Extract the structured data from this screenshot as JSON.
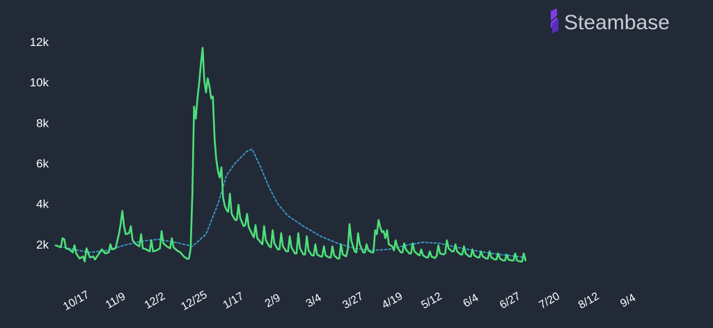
{
  "brand": {
    "name": "Steambase",
    "logo_icon": "steambase-logo-icon",
    "logo_color": "#7b3fe4",
    "text_color": "#c9ccd3"
  },
  "colors": {
    "background": "#222a38",
    "players_line": "#4ee07a",
    "average_line": "#3a9fd0",
    "tick_text": "#ffffff"
  },
  "chart_data": {
    "type": "line",
    "title": "",
    "xlabel": "",
    "ylabel": "",
    "ylim": [
      0,
      12000
    ],
    "y_ticks": [
      {
        "value": 2000,
        "label": "2k"
      },
      {
        "value": 4000,
        "label": "4k"
      },
      {
        "value": 6000,
        "label": "6k"
      },
      {
        "value": 8000,
        "label": "8k"
      },
      {
        "value": 10000,
        "label": "10k"
      },
      {
        "value": 12000,
        "label": "12k"
      }
    ],
    "x_ticks": [
      {
        "day": 13,
        "label": "10/17"
      },
      {
        "day": 36,
        "label": "11/9"
      },
      {
        "day": 59,
        "label": "12/2"
      },
      {
        "day": 82,
        "label": "12/25"
      },
      {
        "day": 105,
        "label": "1/17"
      },
      {
        "day": 128,
        "label": "2/9"
      },
      {
        "day": 152,
        "label": "3/4"
      },
      {
        "day": 175,
        "label": "3/27"
      },
      {
        "day": 198,
        "label": "4/19"
      },
      {
        "day": 221,
        "label": "5/12"
      },
      {
        "day": 244,
        "label": "6/4"
      },
      {
        "day": 267,
        "label": "6/27"
      },
      {
        "day": 290,
        "label": "7/20"
      },
      {
        "day": 313,
        "label": "8/12"
      },
      {
        "day": 336,
        "label": "9/4"
      }
    ],
    "x_range": [
      0,
      375
    ],
    "grid": false,
    "legend": "none",
    "series": [
      {
        "values": [
          [
            0,
            1950
          ],
          [
            3,
            1850
          ],
          [
            4,
            2300
          ],
          [
            5,
            2250
          ],
          [
            6,
            1800
          ],
          [
            8,
            1750
          ],
          [
            10,
            1600
          ],
          [
            11,
            1950
          ],
          [
            12,
            1550
          ],
          [
            14,
            1300
          ],
          [
            16,
            1400
          ],
          [
            17,
            1150
          ],
          [
            18,
            1800
          ],
          [
            20,
            1350
          ],
          [
            22,
            1400
          ],
          [
            23,
            1250
          ],
          [
            25,
            1500
          ],
          [
            27,
            1750
          ],
          [
            29,
            1550
          ],
          [
            31,
            1600
          ],
          [
            32,
            2000
          ],
          [
            33,
            1750
          ],
          [
            35,
            1800
          ],
          [
            37,
            2500
          ],
          [
            38,
            3000
          ],
          [
            39,
            3650
          ],
          [
            40,
            2900
          ],
          [
            41,
            2500
          ],
          [
            43,
            2550
          ],
          [
            44,
            2900
          ],
          [
            45,
            2200
          ],
          [
            47,
            2000
          ],
          [
            49,
            1900
          ],
          [
            50,
            2500
          ],
          [
            51,
            1800
          ],
          [
            53,
            1750
          ],
          [
            55,
            1650
          ],
          [
            56,
            2200
          ],
          [
            57,
            1650
          ],
          [
            59,
            1700
          ],
          [
            61,
            1800
          ],
          [
            62,
            2650
          ],
          [
            63,
            2050
          ],
          [
            65,
            1900
          ],
          [
            67,
            1800
          ],
          [
            68,
            2300
          ],
          [
            69,
            1850
          ],
          [
            71,
            1700
          ],
          [
            73,
            1600
          ],
          [
            75,
            1400
          ],
          [
            77,
            1280
          ],
          [
            78,
            1300
          ],
          [
            79,
            1800
          ],
          [
            80,
            4500
          ],
          [
            81,
            8800
          ],
          [
            82,
            8200
          ],
          [
            83,
            9200
          ],
          [
            84,
            10000
          ],
          [
            85,
            10900
          ],
          [
            86,
            11700
          ],
          [
            87,
            10100
          ],
          [
            88,
            9500
          ],
          [
            89,
            10200
          ],
          [
            90,
            9800
          ],
          [
            91,
            9200
          ],
          [
            92,
            9300
          ],
          [
            93,
            7200
          ],
          [
            94,
            6200
          ],
          [
            95,
            5600
          ],
          [
            96,
            5300
          ],
          [
            97,
            5800
          ],
          [
            98,
            4300
          ],
          [
            99,
            3900
          ],
          [
            100,
            3700
          ],
          [
            101,
            3600
          ],
          [
            102,
            4500
          ],
          [
            103,
            3500
          ],
          [
            105,
            3200
          ],
          [
            106,
            3200
          ],
          [
            107,
            3950
          ],
          [
            108,
            3300
          ],
          [
            110,
            2900
          ],
          [
            111,
            2950
          ],
          [
            112,
            3500
          ],
          [
            113,
            2850
          ],
          [
            115,
            2500
          ],
          [
            116,
            2350
          ],
          [
            117,
            2950
          ],
          [
            118,
            2300
          ],
          [
            120,
            2100
          ],
          [
            121,
            2000
          ],
          [
            122,
            2900
          ],
          [
            123,
            2200
          ],
          [
            125,
            1900
          ],
          [
            126,
            1850
          ],
          [
            127,
            2700
          ],
          [
            128,
            2050
          ],
          [
            130,
            1750
          ],
          [
            131,
            1750
          ],
          [
            132,
            2550
          ],
          [
            133,
            1900
          ],
          [
            135,
            1650
          ],
          [
            136,
            1650
          ],
          [
            137,
            2400
          ],
          [
            138,
            1850
          ],
          [
            140,
            1550
          ],
          [
            141,
            1550
          ],
          [
            142,
            2550
          ],
          [
            143,
            1800
          ],
          [
            145,
            1500
          ],
          [
            146,
            1500
          ],
          [
            147,
            2400
          ],
          [
            148,
            1700
          ],
          [
            150,
            1450
          ],
          [
            151,
            1450
          ],
          [
            152,
            2000
          ],
          [
            153,
            1500
          ],
          [
            155,
            1400
          ],
          [
            156,
            1400
          ],
          [
            157,
            1900
          ],
          [
            158,
            1450
          ],
          [
            160,
            1350
          ],
          [
            161,
            1350
          ],
          [
            162,
            1900
          ],
          [
            163,
            1450
          ],
          [
            165,
            1300
          ],
          [
            166,
            1300
          ],
          [
            167,
            2000
          ],
          [
            168,
            1500
          ],
          [
            170,
            1400
          ],
          [
            171,
            1750
          ],
          [
            172,
            3000
          ],
          [
            173,
            2200
          ],
          [
            175,
            1650
          ],
          [
            176,
            1600
          ],
          [
            177,
            2550
          ],
          [
            178,
            2000
          ],
          [
            180,
            1600
          ],
          [
            181,
            1600
          ],
          [
            182,
            2000
          ],
          [
            183,
            1700
          ],
          [
            185,
            1600
          ],
          [
            186,
            1600
          ],
          [
            187,
            2700
          ],
          [
            188,
            2500
          ],
          [
            189,
            3200
          ],
          [
            190,
            2850
          ],
          [
            191,
            2600
          ],
          [
            192,
            2650
          ],
          [
            193,
            2300
          ],
          [
            194,
            2700
          ],
          [
            195,
            2000
          ],
          [
            197,
            1900
          ],
          [
            198,
            1700
          ],
          [
            199,
            2200
          ],
          [
            200,
            1850
          ],
          [
            202,
            1600
          ],
          [
            203,
            1600
          ],
          [
            204,
            2050
          ],
          [
            205,
            1750
          ],
          [
            207,
            1550
          ],
          [
            208,
            1550
          ],
          [
            209,
            2050
          ],
          [
            210,
            1650
          ],
          [
            212,
            1500
          ],
          [
            213,
            1450
          ],
          [
            214,
            1750
          ],
          [
            215,
            1450
          ],
          [
            217,
            1350
          ],
          [
            218,
            1350
          ],
          [
            219,
            1650
          ],
          [
            220,
            1400
          ],
          [
            222,
            1320
          ],
          [
            223,
            1420
          ],
          [
            224,
            1950
          ],
          [
            225,
            1550
          ],
          [
            227,
            1500
          ],
          [
            228,
            1550
          ],
          [
            229,
            2200
          ],
          [
            230,
            1800
          ],
          [
            232,
            1650
          ],
          [
            233,
            1650
          ],
          [
            234,
            2000
          ],
          [
            235,
            1650
          ],
          [
            237,
            1500
          ],
          [
            238,
            1500
          ],
          [
            239,
            1900
          ],
          [
            240,
            1550
          ],
          [
            242,
            1400
          ],
          [
            243,
            1400
          ],
          [
            244,
            1750
          ],
          [
            245,
            1450
          ],
          [
            247,
            1350
          ],
          [
            248,
            1350
          ],
          [
            249,
            1650
          ],
          [
            250,
            1400
          ],
          [
            252,
            1300
          ],
          [
            253,
            1300
          ],
          [
            254,
            1650
          ],
          [
            255,
            1350
          ],
          [
            257,
            1250
          ],
          [
            258,
            1250
          ],
          [
            259,
            1550
          ],
          [
            260,
            1300
          ],
          [
            262,
            1200
          ],
          [
            263,
            1200
          ],
          [
            264,
            1500
          ],
          [
            265,
            1250
          ],
          [
            267,
            1200
          ],
          [
            268,
            1200
          ],
          [
            269,
            1550
          ],
          [
            270,
            1200
          ],
          [
            272,
            1150
          ],
          [
            273,
            1150
          ],
          [
            274,
            1550
          ],
          [
            275,
            1200
          ]
        ],
        "color": "#4ee07a"
      },
      {
        "values": [
          [
            0,
            1950
          ],
          [
            10,
            1750
          ],
          [
            20,
            1600
          ],
          [
            30,
            1700
          ],
          [
            40,
            1950
          ],
          [
            50,
            2150
          ],
          [
            60,
            2250
          ],
          [
            70,
            2100
          ],
          [
            80,
            1900
          ],
          [
            88,
            2500
          ],
          [
            95,
            4000
          ],
          [
            100,
            5400
          ],
          [
            105,
            6000
          ],
          [
            112,
            6600
          ],
          [
            115,
            6700
          ],
          [
            120,
            5800
          ],
          [
            125,
            4800
          ],
          [
            130,
            4000
          ],
          [
            136,
            3400
          ],
          [
            145,
            2900
          ],
          [
            155,
            2400
          ],
          [
            165,
            2050
          ],
          [
            175,
            1800
          ],
          [
            185,
            1700
          ],
          [
            195,
            1750
          ],
          [
            205,
            1950
          ],
          [
            215,
            2100
          ],
          [
            225,
            2050
          ],
          [
            235,
            1850
          ],
          [
            245,
            1700
          ],
          [
            255,
            1550
          ],
          [
            265,
            1450
          ],
          [
            275,
            1350
          ]
        ],
        "color": "#3a9fd0",
        "style": "dotted"
      }
    ]
  }
}
